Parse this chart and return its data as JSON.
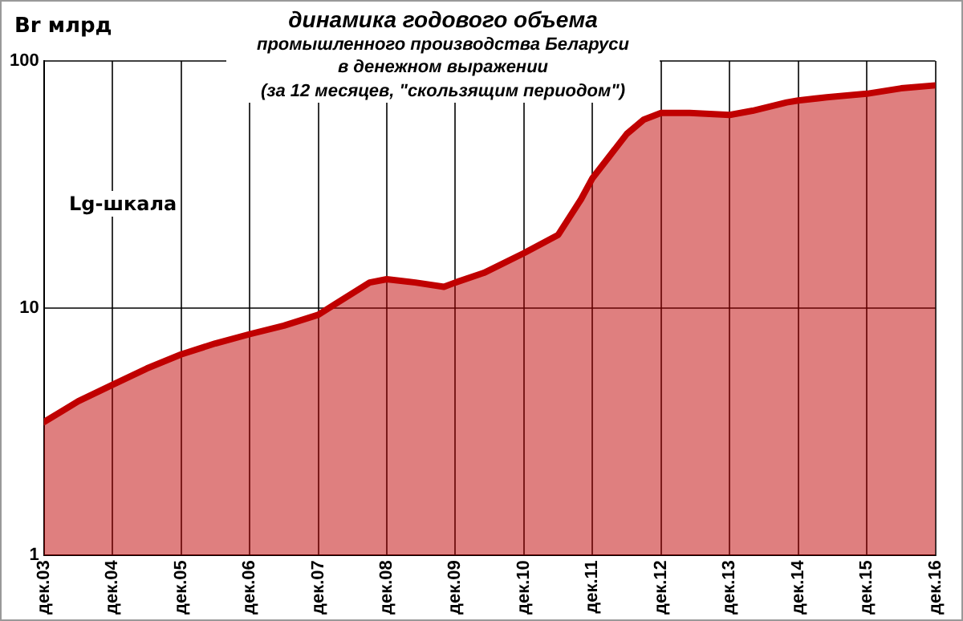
{
  "chart_data": {
    "type": "area",
    "title": "динамика годового объема",
    "subtitle": "промышленного производства Беларуси\nв денежном выражении\n(за 12 месяцев, \"скользящим периодом\")",
    "ylabel": "Br млрд",
    "annotations": [
      "Lg-шкала"
    ],
    "x": [
      "2003-12",
      "2004-06",
      "2004-12",
      "2005-06",
      "2005-12",
      "2006-06",
      "2006-12",
      "2007-06",
      "2007-12",
      "2008-03",
      "2008-09",
      "2008-12",
      "2009-05",
      "2009-10",
      "2009-12",
      "2010-05",
      "2010-12",
      "2011-06",
      "2011-10",
      "2011-12",
      "2012-06",
      "2012-09",
      "2012-12",
      "2013-05",
      "2013-12",
      "2014-04",
      "2014-10",
      "2014-12",
      "2015-05",
      "2015-12",
      "2016-06",
      "2016-12"
    ],
    "series": [
      {
        "color": "#c00000",
        "values": [
          3.46,
          4.2,
          4.9,
          5.7,
          6.5,
          7.2,
          7.85,
          8.5,
          9.4,
          10.4,
          12.7,
          13.1,
          12.7,
          12.2,
          12.7,
          13.9,
          16.7,
          19.8,
          27.6,
          33.6,
          50.7,
          58,
          61.6,
          61.6,
          60.5,
          62.9,
          68,
          69.2,
          71.3,
          73.7,
          77.5,
          79.7
        ]
      }
    ],
    "log": "y",
    "ylim": [
      1,
      100
    ],
    "yticks": [
      1,
      10,
      100
    ],
    "xlim": [
      "2003-12",
      "2016-12"
    ],
    "xticks": [
      {
        "value": "2003-12",
        "label": "дек.03"
      },
      {
        "value": "2004-12",
        "label": "дек.04"
      },
      {
        "value": "2005-12",
        "label": "дек.05"
      },
      {
        "value": "2006-12",
        "label": "дек.06"
      },
      {
        "value": "2007-12",
        "label": "дек.07"
      },
      {
        "value": "2008-12",
        "label": "дек.08"
      },
      {
        "value": "2009-12",
        "label": "дек.09"
      },
      {
        "value": "2010-12",
        "label": "дек.10"
      },
      {
        "value": "2011-12",
        "label": "дек.11"
      },
      {
        "value": "2012-12",
        "label": "дек.12"
      },
      {
        "value": "2013-12",
        "label": "дек.13"
      },
      {
        "value": "2014-12",
        "label": "дек.14"
      },
      {
        "value": "2015-12",
        "label": "дек.15"
      },
      {
        "value": "2016-12",
        "label": "дек.16"
      }
    ],
    "grid": true,
    "legend": false
  }
}
